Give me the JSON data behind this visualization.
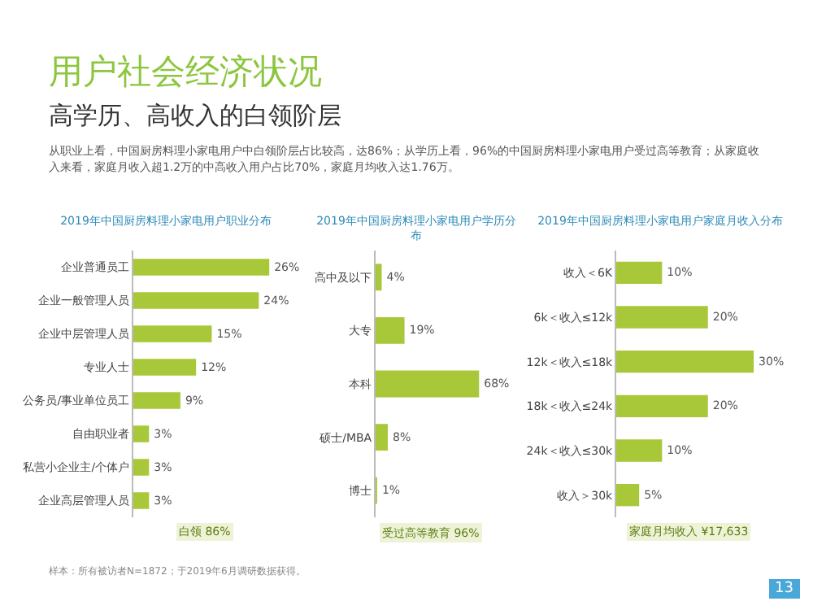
{
  "chart_data": [
    {
      "type": "other",
      "title": "用户社会经济状况",
      "subtitle": "高学历、高收入的白领阶层",
      "annotations": [
        "从职业上看，中国厨房料理小家电用户中白领阶层占比较高，达86%；从学历上看，96%的中国厨房料理小家电用户受过高等教育；从家庭收入来看，家庭月收入超1.2万的中高收入用户占比70%，家庭月均收入达1.76万。",
        "样本：所有被访者N=1872；于2019年6月调研数据获得。",
        "13"
      ]
    },
    {
      "type": "bar",
      "orientation": "horizontal",
      "title": "2019年中国厨房料理小家电用户职业分布",
      "color": "#a8c83a",
      "categories": [
        "企业普通员工",
        "企业一般管理人员",
        "企业中层管理人员",
        "专业人士",
        "公务员/事业单位员工",
        "自由职业者",
        "私营小企业主/个体户",
        "企业高层管理人员"
      ],
      "values": [
        26,
        24,
        15,
        12,
        9,
        3,
        3,
        3
      ],
      "value_labels": [
        "26%",
        "24%",
        "15%",
        "12%",
        "9%",
        "3%",
        "3%",
        "3%"
      ],
      "annotations": [
        "白领 86%"
      ]
    },
    {
      "type": "bar",
      "orientation": "horizontal",
      "title": "2019年中国厨房料理小家电用户学历分布",
      "color": "#a8c83a",
      "categories": [
        "高中及以下",
        "大专",
        "本科",
        "硕士/MBA",
        "博士"
      ],
      "values": [
        4,
        19,
        68,
        8,
        1
      ],
      "value_labels": [
        "4%",
        "19%",
        "68%",
        "8%",
        "1%"
      ],
      "annotations": [
        "受过高等教育 96%"
      ]
    },
    {
      "type": "bar",
      "orientation": "horizontal",
      "title": "2019年中国厨房料理小家电用户家庭月收入分布",
      "color": "#a8c83a",
      "categories": [
        "收入＜6K",
        "6k＜收入≤12k",
        "12k＜收入≤18k",
        "18k＜收入≤24k",
        "24k＜收入≤30k",
        "收入＞30k"
      ],
      "values": [
        10,
        20,
        30,
        20,
        10,
        5
      ],
      "value_labels": [
        "10%",
        "20%",
        "30%",
        "20%",
        "10%",
        "5%"
      ],
      "annotations": [
        "家庭月均收入 ¥17,633"
      ]
    }
  ]
}
